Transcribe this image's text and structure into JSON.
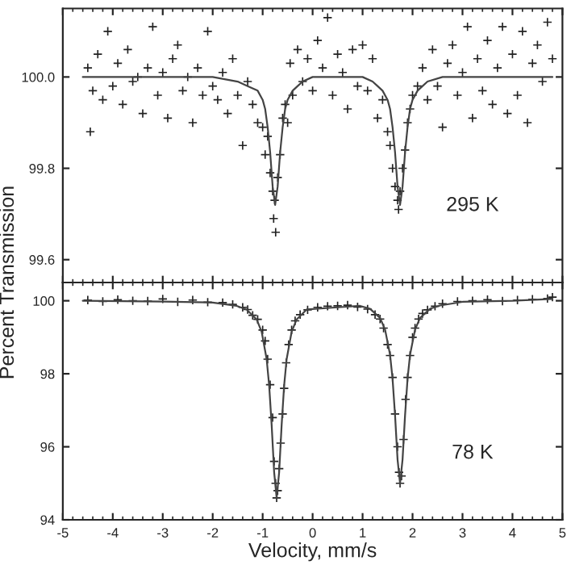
{
  "chart_data": [
    {
      "type": "scatter",
      "ylabel": "Percent Transmission",
      "annotations": [
        "295 K"
      ],
      "xlim": [
        -5,
        5
      ],
      "xticks": [
        -5,
        -4,
        -3,
        -2,
        -1,
        0,
        1,
        2,
        3,
        4,
        5
      ],
      "ylim": [
        99.55,
        100.15
      ],
      "yticks": [
        99.6,
        99.8,
        {
          "value": 100.0,
          "label": "100.0"
        }
      ],
      "tick_labels": "y",
      "grid": false,
      "legend": false,
      "series": [
        {
          "type": "scatter",
          "marker": "cross",
          "color": "#222222",
          "x": [
            -4.5,
            -4.45,
            -4.4,
            -4.3,
            -4.2,
            -4.1,
            -4.0,
            -3.9,
            -3.8,
            -3.7,
            -3.6,
            -3.5,
            -3.4,
            -3.3,
            -3.2,
            -3.1,
            -3.0,
            -2.9,
            -2.8,
            -2.7,
            -2.6,
            -2.5,
            -2.4,
            -2.3,
            -2.2,
            -2.1,
            -2.0,
            -1.9,
            -1.8,
            -1.7,
            -1.6,
            -1.5,
            -1.4,
            -1.3,
            -1.2,
            -1.1,
            -1.0,
            -0.95,
            -0.9,
            -0.85,
            -0.8,
            -0.78,
            -0.76,
            -0.74,
            -0.7,
            -0.65,
            -0.6,
            -0.55,
            -0.5,
            -0.45,
            -0.4,
            -0.3,
            -0.2,
            -0.1,
            0.0,
            0.1,
            0.2,
            0.3,
            0.4,
            0.5,
            0.6,
            0.7,
            0.8,
            0.9,
            1.0,
            1.1,
            1.2,
            1.3,
            1.4,
            1.5,
            1.55,
            1.6,
            1.65,
            1.7,
            1.72,
            1.75,
            1.8,
            1.85,
            1.9,
            1.95,
            2.0,
            2.1,
            2.2,
            2.3,
            2.4,
            2.5,
            2.6,
            2.7,
            2.8,
            2.9,
            3.0,
            3.1,
            3.2,
            3.3,
            3.4,
            3.5,
            3.6,
            3.7,
            3.8,
            3.9,
            4.0,
            4.1,
            4.2,
            4.3,
            4.4,
            4.5,
            4.6,
            4.7,
            4.8
          ],
          "values": [
            100.02,
            99.88,
            99.97,
            100.05,
            99.95,
            100.1,
            99.98,
            100.03,
            99.94,
            100.06,
            99.99,
            100.0,
            99.92,
            100.02,
            100.11,
            99.96,
            100.01,
            99.91,
            100.04,
            100.07,
            99.97,
            100.0,
            99.9,
            100.02,
            99.96,
            100.1,
            99.98,
            99.95,
            100.01,
            99.92,
            100.04,
            99.96,
            99.85,
            99.99,
            99.94,
            99.9,
            99.89,
            99.83,
            99.87,
            99.79,
            99.75,
            99.69,
            99.73,
            99.66,
            99.78,
            99.83,
            99.91,
            99.94,
            99.9,
            100.03,
            99.96,
            100.06,
            99.99,
            100.04,
            99.97,
            100.08,
            100.02,
            100.13,
            99.96,
            100.05,
            100.01,
            99.93,
            100.06,
            99.98,
            100.07,
            99.97,
            100.04,
            99.91,
            99.95,
            99.88,
            99.85,
            99.8,
            99.76,
            99.73,
            99.71,
            99.75,
            99.8,
            99.84,
            99.9,
            99.93,
            99.96,
            99.98,
            100.02,
            99.95,
            100.06,
            99.98,
            99.89,
            100.03,
            100.07,
            99.96,
            100.01,
            100.11,
            99.91,
            100.04,
            99.97,
            100.08,
            99.94,
            100.02,
            100.11,
            99.92,
            100.05,
            99.96,
            100.1,
            99.9,
            100.03,
            100.07,
            99.99,
            100.12,
            100.04
          ]
        },
        {
          "type": "line",
          "color": "#444444",
          "x": [
            -4.6,
            -2,
            -1.5,
            -1.3,
            -1.1,
            -1.0,
            -0.95,
            -0.9,
            -0.85,
            -0.8,
            -0.75,
            -0.7,
            -0.65,
            -0.6,
            -0.55,
            -0.5,
            -0.4,
            -0.3,
            -0.2,
            0,
            1.0,
            1.2,
            1.3,
            1.4,
            1.5,
            1.55,
            1.6,
            1.65,
            1.7,
            1.75,
            1.8,
            1.85,
            1.9,
            1.95,
            2.0,
            2.1,
            2.2,
            2.3,
            2.6,
            4.8
          ],
          "values": [
            100.0,
            100.0,
            99.99,
            99.98,
            99.97,
            99.95,
            99.93,
            99.89,
            99.835,
            99.76,
            99.72,
            99.76,
            99.835,
            99.89,
            99.93,
            99.95,
            99.97,
            99.98,
            99.99,
            100.0,
            100.0,
            99.99,
            99.98,
            99.97,
            99.95,
            99.93,
            99.89,
            99.835,
            99.76,
            99.72,
            99.76,
            99.835,
            99.89,
            99.93,
            99.95,
            99.97,
            99.98,
            99.99,
            100.0,
            100.0
          ]
        }
      ]
    },
    {
      "type": "scatter",
      "xlabel": "Velocity, mm/s",
      "annotations": [
        "78 K"
      ],
      "xlim": [
        -5,
        5
      ],
      "xticks": [
        -5,
        -4,
        -3,
        -2,
        -1,
        0,
        1,
        2,
        3,
        4,
        5
      ],
      "ylim": [
        94,
        100.5
      ],
      "yticks": [
        94,
        96,
        98,
        100
      ],
      "grid": false,
      "legend": false,
      "series": [
        {
          "type": "scatter",
          "marker": "cross",
          "color": "#222222",
          "x": [
            -4.5,
            -4.2,
            -3.9,
            -3.6,
            -3.3,
            -3.0,
            -2.7,
            -2.4,
            -2.1,
            -1.8,
            -1.6,
            -1.4,
            -1.3,
            -1.2,
            -1.1,
            -1.0,
            -0.95,
            -0.9,
            -0.85,
            -0.8,
            -0.77,
            -0.74,
            -0.72,
            -0.7,
            -0.67,
            -0.64,
            -0.6,
            -0.57,
            -0.53,
            -0.48,
            -0.42,
            -0.35,
            -0.25,
            -0.1,
            0.1,
            0.3,
            0.5,
            0.7,
            0.9,
            1.1,
            1.25,
            1.35,
            1.42,
            1.5,
            1.55,
            1.6,
            1.65,
            1.7,
            1.73,
            1.75,
            1.78,
            1.82,
            1.86,
            1.9,
            1.95,
            2.0,
            2.05,
            2.12,
            2.2,
            2.3,
            2.45,
            2.6,
            2.9,
            3.2,
            3.5,
            3.8,
            4.1,
            4.4,
            4.7,
            4.8
          ],
          "values": [
            100.02,
            99.98,
            100.03,
            100.0,
            99.99,
            100.05,
            99.97,
            100.02,
            99.96,
            99.95,
            99.9,
            99.82,
            99.76,
            99.6,
            99.49,
            99.2,
            98.9,
            98.4,
            97.7,
            96.8,
            95.6,
            95.0,
            94.6,
            94.8,
            95.4,
            96.1,
            96.9,
            97.6,
            98.3,
            98.8,
            99.2,
            99.45,
            99.62,
            99.75,
            99.82,
            99.85,
            99.86,
            99.88,
            99.83,
            99.77,
            99.62,
            99.5,
            99.25,
            98.8,
            98.5,
            97.9,
            96.9,
            96.0,
            95.3,
            95.0,
            95.2,
            96.2,
            97.3,
            97.9,
            98.5,
            99.0,
            99.25,
            99.5,
            99.65,
            99.75,
            99.85,
            99.92,
            99.98,
            100.0,
            100.03,
            99.99,
            100.02,
            100.04,
            100.06,
            100.1
          ]
        },
        {
          "type": "line",
          "color": "#444444",
          "x": [
            -4.6,
            -3,
            -2,
            -1.52,
            -1.32,
            -1.12,
            -1.02,
            -0.92,
            -0.87,
            -0.82,
            -0.77,
            -0.72,
            -0.67,
            -0.62,
            -0.57,
            -0.52,
            -0.42,
            -0.32,
            -0.12,
            0.5,
            0.95,
            1.15,
            1.35,
            1.45,
            1.55,
            1.6,
            1.65,
            1.7,
            1.75,
            1.8,
            1.85,
            1.9,
            1.95,
            2.05,
            2.15,
            2.35,
            2.55,
            3,
            4,
            4.8
          ],
          "values": [
            100.0,
            99.98,
            99.95,
            99.86,
            99.76,
            99.49,
            99.15,
            98.4,
            97.68,
            96.6,
            95.3,
            94.6,
            95.3,
            96.6,
            97.68,
            98.4,
            99.15,
            99.49,
            99.76,
            99.82,
            99.86,
            99.78,
            99.53,
            99.21,
            98.52,
            97.86,
            96.86,
            95.65,
            95.0,
            95.65,
            96.86,
            97.86,
            98.52,
            99.21,
            99.53,
            99.78,
            99.87,
            99.97,
            100.0,
            100.05
          ]
        }
      ]
    }
  ]
}
